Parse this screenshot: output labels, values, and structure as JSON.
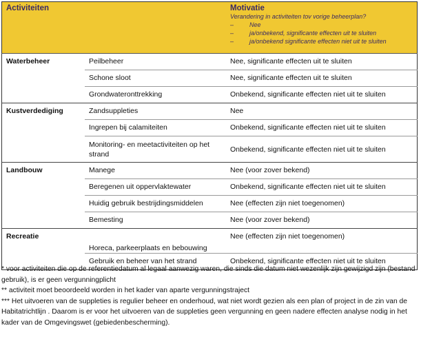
{
  "header": {
    "col1": "Activiteiten",
    "col3": "Motivatie",
    "subtitle": "Verandering in activiteiten tov vorige beheerplan?",
    "options": [
      "Nee",
      "ja/onbekend, significante effecten uit te sluiten",
      "ja/onbekend significante effecten niet uit te sluiten"
    ],
    "dash": "–"
  },
  "groups": [
    {
      "name": "Waterbeheer",
      "rows": [
        {
          "activity": "Peilbeheer",
          "motivation": "Nee, significante effecten uit te sluiten"
        },
        {
          "activity": "Schone sloot",
          "motivation": "Nee, significante effecten uit te sluiten"
        },
        {
          "activity": "Grondwateronttrekking",
          "motivation": "Onbekend, significante effecten niet uit te sluiten"
        }
      ]
    },
    {
      "name": "Kustverdediging",
      "rows": [
        {
          "activity": "Zandsuppleties",
          "motivation": "Nee"
        },
        {
          "activity": "Ingrepen bij calamiteiten",
          "motivation": "Onbekend, significante effecten niet uit te sluiten"
        },
        {
          "activity": "Monitoring- en meetactiviteiten op het strand",
          "motivation": "Onbekend, significante effecten niet uit te sluiten"
        }
      ]
    },
    {
      "name": "Landbouw",
      "rows": [
        {
          "activity": "Manege",
          "motivation": "Nee (voor zover bekend)"
        },
        {
          "activity": "Beregenen uit oppervlaktewater",
          "motivation": "Onbekend, significante effecten niet uit te sluiten"
        },
        {
          "activity": "Huidig gebruik bestrijdingsmiddelen",
          "motivation": "Nee (effecten zijn niet toegenomen)"
        },
        {
          "activity": "Bemesting",
          "motivation": "Nee (voor zover bekend)"
        }
      ]
    },
    {
      "name": "Recreatie",
      "rows": [
        {
          "activity": "Horeca, parkeerplaats en bebouwing",
          "motivation": "Nee (effecten zijn niet toegenomen)"
        },
        {
          "activity": "Gebruik en beheer van het strand",
          "motivation": "Onbekend, significante effecten niet uit te sluiten"
        }
      ]
    }
  ],
  "footnotes": [
    "* voor activiteiten die op de referentiedatum al legaal aanwezig waren, die sinds die datum niet wezenlijk zijn gewijzigd zijn (bestand gebruik), is er geen vergunningplicht",
    "** activiteit moet beoordeeld worden in het kader van aparte vergunningstraject",
    "*** Het uitvoeren van de suppleties is regulier beheer en onderhoud, wat niet wordt gezien als een plan of project in de zin van de Habitatrichtlijn . Daarom is er voor het uitvoeren van de suppleties geen vergunning en geen nadere effecten analyse nodig in het kader van de Omgevingswet (gebiedenbescherming)."
  ]
}
